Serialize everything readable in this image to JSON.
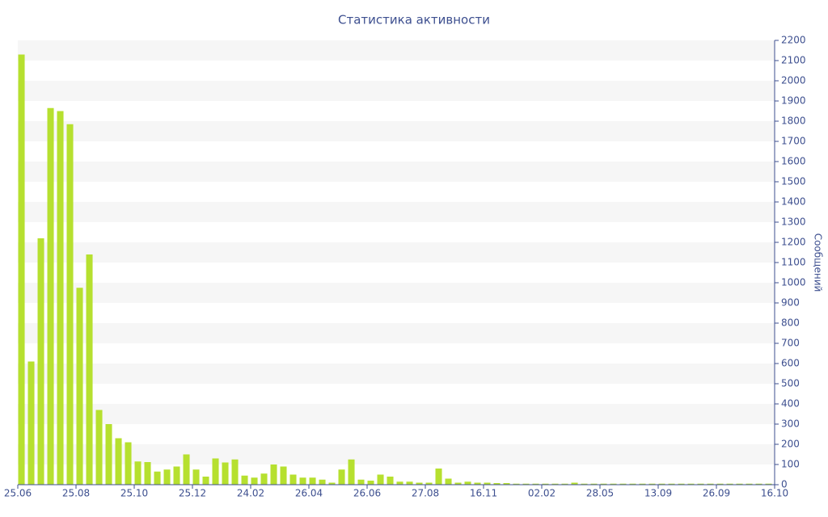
{
  "chart_data": {
    "type": "bar",
    "title": "Статистика активности",
    "y_label": "Сообщений",
    "values": [
      2130,
      610,
      1220,
      1865,
      1850,
      1785,
      975,
      1140,
      370,
      300,
      230,
      210,
      115,
      112,
      65,
      75,
      90,
      150,
      75,
      40,
      130,
      110,
      125,
      45,
      35,
      55,
      100,
      90,
      50,
      35,
      35,
      25,
      10,
      75,
      125,
      25,
      20,
      50,
      40,
      15,
      15,
      10,
      10,
      80,
      30,
      10,
      15,
      10,
      10,
      8,
      8,
      5,
      5,
      5,
      5,
      5,
      5,
      10,
      5,
      5,
      5,
      5,
      5,
      5,
      5,
      5,
      5,
      5,
      5,
      5,
      5,
      5,
      5,
      5,
      5,
      5,
      5,
      5
    ],
    "color": "#b6e02f",
    "xlim": [
      0,
      78
    ],
    "xticks": [
      {
        "value": 0,
        "label": "25.06"
      },
      {
        "value": 6,
        "label": "25.08"
      },
      {
        "value": 12,
        "label": "25.10"
      },
      {
        "value": 18,
        "label": "25.12"
      },
      {
        "value": 24,
        "label": "24.02"
      },
      {
        "value": 30,
        "label": "26.04"
      },
      {
        "value": 36,
        "label": "26.06"
      },
      {
        "value": 42,
        "label": "27.08"
      },
      {
        "value": 48,
        "label": "16.11"
      },
      {
        "value": 54,
        "label": "02.02"
      },
      {
        "value": 60,
        "label": "28.05"
      },
      {
        "value": 66,
        "label": "13.09"
      },
      {
        "value": 72,
        "label": "26.09"
      },
      {
        "value": 78,
        "label": "16.10"
      }
    ],
    "ylim": [
      0,
      2200
    ],
    "yticks": [
      0,
      100,
      200,
      300,
      400,
      500,
      600,
      700,
      800,
      900,
      1000,
      1100,
      1200,
      1300,
      1400,
      1500,
      1600,
      1700,
      1800,
      1900,
      2000,
      2100,
      2200
    ],
    "y_axis_side": "right",
    "grid": true
  }
}
